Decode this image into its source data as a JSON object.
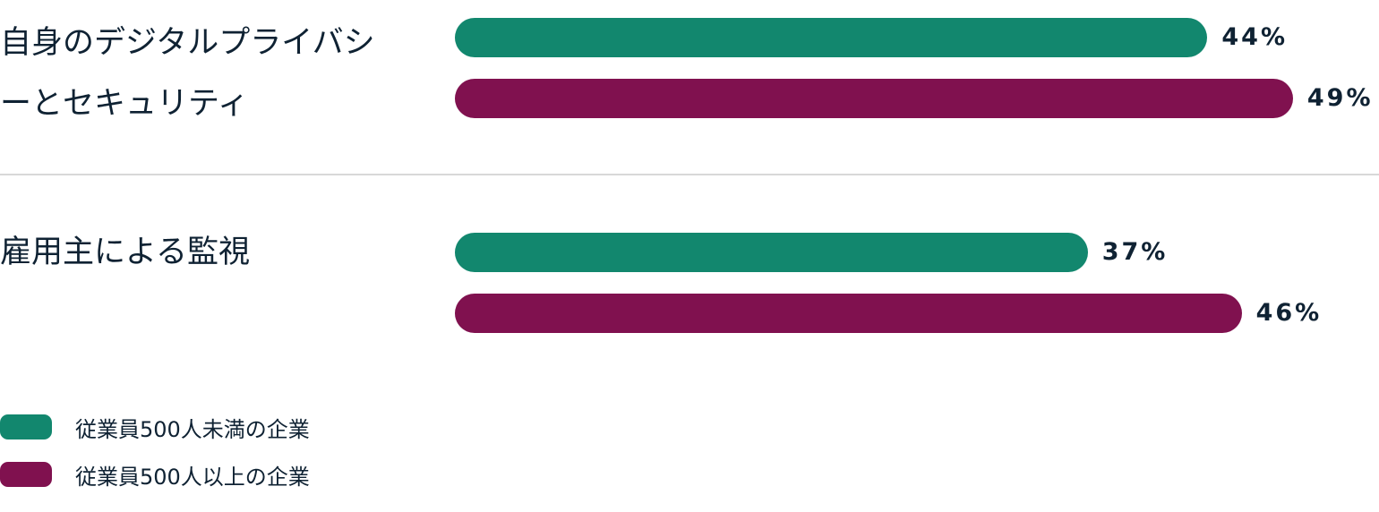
{
  "chart_data": {
    "type": "bar",
    "orientation": "horizontal",
    "categories": [
      "自身のデジタルプライバシーとセキュリティ",
      "雇用主による監視"
    ],
    "series": [
      {
        "name": "従業員500人未満の企業",
        "values": [
          44,
          37
        ],
        "color": "#12876e"
      },
      {
        "name": "従業員500人以上の企業",
        "values": [
          49,
          46
        ],
        "color": "#80114f"
      }
    ],
    "value_labels": [
      [
        "44%",
        "37%"
      ],
      [
        "49%",
        "46%"
      ]
    ],
    "unit": "%",
    "grid": false,
    "legend_placement": "bottom-left"
  }
}
